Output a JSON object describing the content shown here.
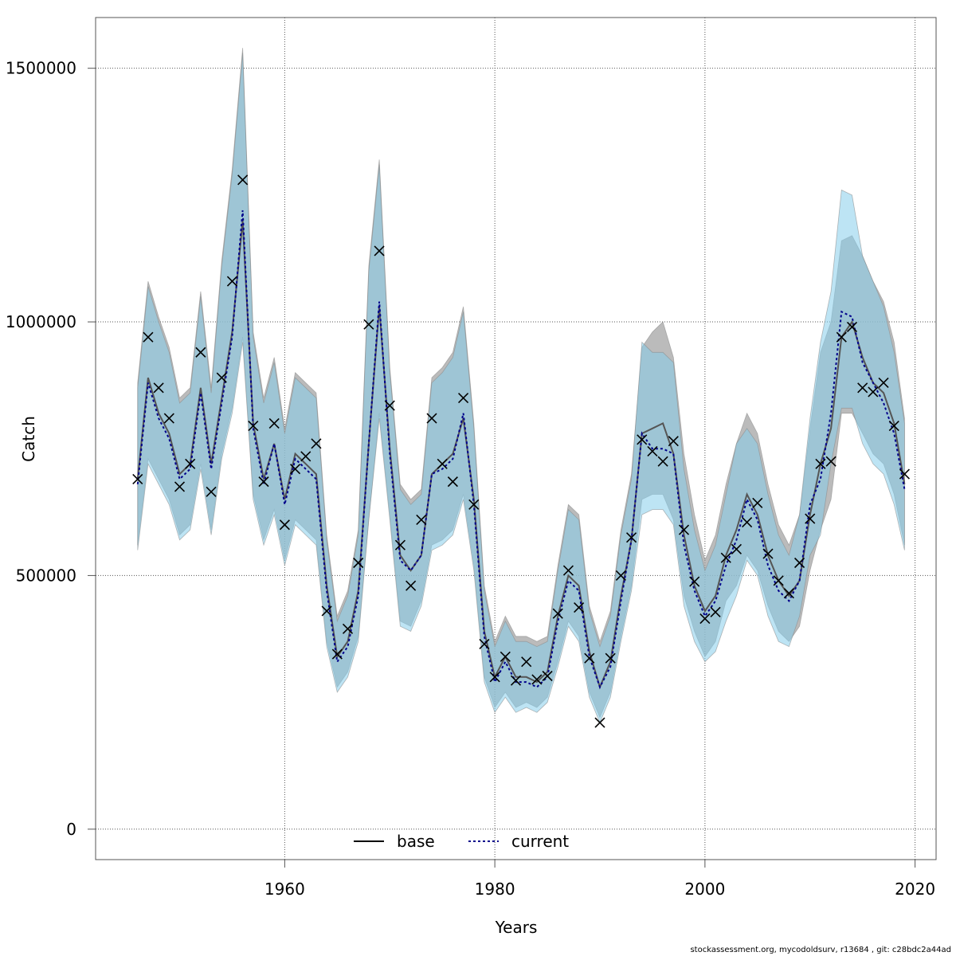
{
  "chart_data": {
    "type": "line",
    "title": "",
    "xlabel": "Years",
    "ylabel": "Catch",
    "xlim": [
      1942,
      2022
    ],
    "ylim": [
      -60000,
      1600000
    ],
    "xticks": [
      1960,
      1980,
      2000,
      2020
    ],
    "yticks": [
      0,
      500000,
      1000000,
      1500000
    ],
    "grid": true,
    "legend": {
      "placement": "bottom-center",
      "entries": [
        "base",
        "current"
      ]
    },
    "colors": {
      "base_band": "#9e9e9e",
      "current_band": "#87ceeb",
      "current_line": "#00008b",
      "observed": "#000000"
    },
    "years": [
      1946,
      1947,
      1948,
      1949,
      1950,
      1951,
      1952,
      1953,
      1954,
      1955,
      1956,
      1957,
      1958,
      1959,
      1960,
      1961,
      1962,
      1963,
      1964,
      1965,
      1966,
      1967,
      1968,
      1969,
      1970,
      1971,
      1972,
      1973,
      1974,
      1975,
      1976,
      1977,
      1978,
      1979,
      1980,
      1981,
      1982,
      1983,
      1984,
      1985,
      1986,
      1987,
      1988,
      1989,
      1990,
      1991,
      1992,
      1993,
      1994,
      1995,
      1996,
      1997,
      1998,
      1999,
      2000,
      2001,
      2002,
      2003,
      2004,
      2005,
      2006,
      2007,
      2008,
      2009,
      2010,
      2011,
      2012,
      2013,
      2014,
      2015,
      2016,
      2017,
      2018,
      2019
    ],
    "series": [
      {
        "name": "base",
        "estimate": [
          690000,
          890000,
          820000,
          780000,
          700000,
          720000,
          870000,
          720000,
          850000,
          980000,
          1200000,
          800000,
          690000,
          760000,
          650000,
          740000,
          720000,
          700000,
          480000,
          340000,
          370000,
          470000,
          760000,
          1030000,
          750000,
          540000,
          510000,
          540000,
          700000,
          720000,
          740000,
          810000,
          650000,
          390000,
          300000,
          340000,
          300000,
          300000,
          290000,
          310000,
          420000,
          500000,
          480000,
          350000,
          280000,
          330000,
          460000,
          570000,
          780000,
          790000,
          800000,
          740000,
          580000,
          480000,
          430000,
          460000,
          540000,
          590000,
          660000,
          620000,
          540000,
          490000,
          460000,
          490000,
          620000,
          720000,
          790000,
          970000,
          1000000,
          930000,
          880000,
          860000,
          800000,
          680000
        ],
        "lower": [
          560000,
          730000,
          690000,
          650000,
          580000,
          600000,
          720000,
          590000,
          740000,
          830000,
          970000,
          660000,
          570000,
          630000,
          530000,
          610000,
          590000,
          570000,
          370000,
          280000,
          310000,
          380000,
          610000,
          820000,
          620000,
          410000,
          400000,
          450000,
          560000,
          570000,
          590000,
          660000,
          520000,
          300000,
          240000,
          270000,
          240000,
          250000,
          240000,
          260000,
          330000,
          410000,
          380000,
          270000,
          220000,
          270000,
          380000,
          480000,
          650000,
          660000,
          660000,
          610000,
          460000,
          390000,
          340000,
          370000,
          450000,
          480000,
          540000,
          510000,
          440000,
          390000,
          370000,
          400000,
          510000,
          590000,
          650000,
          820000,
          820000,
          780000,
          740000,
          720000,
          660000,
          560000
        ],
        "upper": [
          880000,
          1080000,
          1010000,
          950000,
          850000,
          870000,
          1060000,
          870000,
          1120000,
          1300000,
          1540000,
          980000,
          850000,
          930000,
          790000,
          900000,
          880000,
          860000,
          580000,
          420000,
          470000,
          590000,
          1110000,
          1320000,
          910000,
          680000,
          650000,
          670000,
          890000,
          910000,
          940000,
          1030000,
          800000,
          480000,
          370000,
          420000,
          380000,
          380000,
          370000,
          380000,
          520000,
          640000,
          620000,
          440000,
          370000,
          430000,
          590000,
          700000,
          950000,
          980000,
          1000000,
          930000,
          740000,
          620000,
          530000,
          580000,
          680000,
          760000,
          820000,
          780000,
          680000,
          600000,
          560000,
          620000,
          790000,
          940000,
          1000000,
          1160000,
          1170000,
          1130000,
          1080000,
          1040000,
          960000,
          810000
        ]
      },
      {
        "name": "current",
        "estimate": [
          680000,
          880000,
          810000,
          770000,
          690000,
          710000,
          860000,
          710000,
          840000,
          970000,
          1220000,
          790000,
          680000,
          760000,
          640000,
          730000,
          710000,
          690000,
          470000,
          330000,
          360000,
          460000,
          760000,
          1040000,
          740000,
          530000,
          510000,
          540000,
          700000,
          710000,
          730000,
          820000,
          640000,
          380000,
          290000,
          330000,
          290000,
          290000,
          280000,
          300000,
          410000,
          490000,
          470000,
          340000,
          280000,
          320000,
          450000,
          570000,
          780000,
          750000,
          750000,
          740000,
          560000,
          470000,
          420000,
          450000,
          520000,
          570000,
          650000,
          610000,
          520000,
          470000,
          450000,
          490000,
          640000,
          690000,
          820000,
          1020000,
          1010000,
          920000,
          880000,
          840000,
          780000,
          670000
        ],
        "lower": [
          550000,
          720000,
          680000,
          640000,
          570000,
          590000,
          710000,
          580000,
          730000,
          820000,
          960000,
          650000,
          560000,
          620000,
          520000,
          600000,
          580000,
          560000,
          360000,
          270000,
          300000,
          370000,
          610000,
          810000,
          610000,
          400000,
          390000,
          440000,
          550000,
          560000,
          580000,
          650000,
          510000,
          290000,
          230000,
          260000,
          230000,
          240000,
          230000,
          250000,
          320000,
          400000,
          370000,
          260000,
          210000,
          260000,
          370000,
          470000,
          620000,
          630000,
          630000,
          600000,
          440000,
          370000,
          330000,
          350000,
          410000,
          460000,
          530000,
          500000,
          420000,
          370000,
          360000,
          420000,
          540000,
          580000,
          720000,
          830000,
          830000,
          760000,
          720000,
          700000,
          640000,
          550000
        ],
        "upper": [
          870000,
          1070000,
          1000000,
          940000,
          840000,
          860000,
          1050000,
          860000,
          1110000,
          1290000,
          1530000,
          970000,
          840000,
          920000,
          780000,
          890000,
          870000,
          850000,
          570000,
          410000,
          460000,
          580000,
          1100000,
          1310000,
          900000,
          670000,
          640000,
          660000,
          880000,
          900000,
          930000,
          1020000,
          790000,
          470000,
          360000,
          410000,
          370000,
          370000,
          360000,
          370000,
          510000,
          630000,
          610000,
          430000,
          360000,
          420000,
          580000,
          690000,
          960000,
          940000,
          940000,
          920000,
          710000,
          590000,
          510000,
          560000,
          660000,
          760000,
          790000,
          760000,
          660000,
          580000,
          540000,
          620000,
          810000,
          960000,
          1060000,
          1260000,
          1250000,
          1130000,
          1080000,
          1030000,
          940000,
          800000
        ]
      }
    ],
    "observed": {
      "name": "observed",
      "marker": "x",
      "values": [
        690000,
        970000,
        870000,
        810000,
        675000,
        720000,
        940000,
        665000,
        890000,
        1080000,
        1280000,
        795000,
        685000,
        800000,
        600000,
        710000,
        735000,
        760000,
        430000,
        345000,
        395000,
        525000,
        995000,
        1140000,
        835000,
        560000,
        480000,
        610000,
        810000,
        720000,
        685000,
        850000,
        640000,
        365000,
        300000,
        340000,
        293000,
        330000,
        295000,
        302000,
        425000,
        510000,
        437000,
        337000,
        210000,
        337000,
        500000,
        575000,
        768000,
        745000,
        725000,
        765000,
        590000,
        488000,
        415000,
        428000,
        535000,
        552000,
        605000,
        643000,
        543000,
        490000,
        465000,
        525000,
        612000,
        720000,
        725000,
        970000,
        990000,
        870000,
        862000,
        880000,
        795000,
        700000
      ]
    }
  },
  "footer": "stockassessment.org, mycodoldsurv, r13684 , git: c28bdc2a44ad"
}
